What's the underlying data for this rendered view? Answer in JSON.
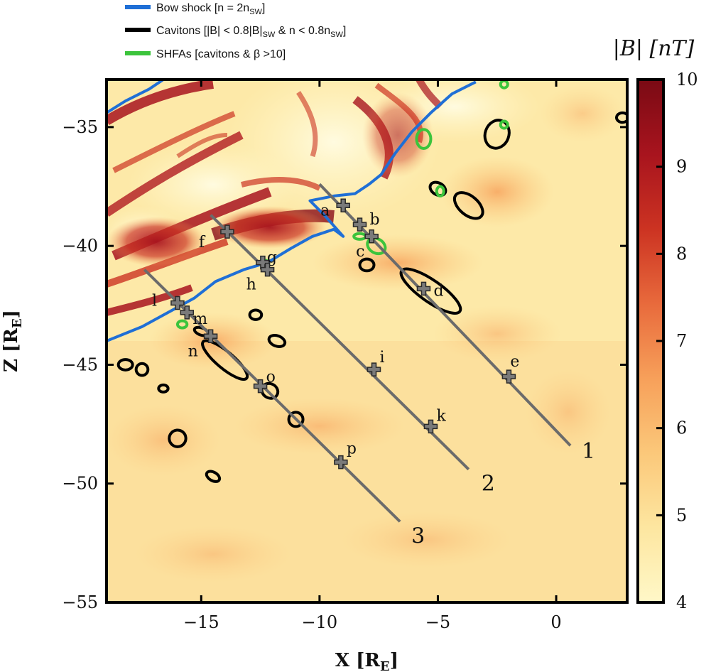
{
  "legend": {
    "items": [
      {
        "label": "Bow shock [n = 2n",
        "sub": "SW",
        "tail": "]",
        "color": "#1f6fd6"
      },
      {
        "label": "Cavitons [|B| < 0.8|B|",
        "sub": "SW",
        "tail": " & n < 0.8n",
        "sub2": "SW",
        "tail2": "]",
        "color": "#000000"
      },
      {
        "label": "SHFAs [cavitons & β >10]",
        "color": "#3cc43c"
      }
    ]
  },
  "colorbar": {
    "label": "|B| [nT]",
    "ticks": [
      "10",
      "9",
      "8",
      "7",
      "6",
      "5",
      "4"
    ],
    "range": [
      4,
      10
    ],
    "colormap": [
      "#fff8c8",
      "#fde6a0",
      "#fbc87a",
      "#f7a05a",
      "#e86a3c",
      "#cc3322",
      "#a8141e",
      "#7a0a14"
    ]
  },
  "axes": {
    "xlabel": "X [R",
    "xlabel_sub": "E",
    "xlabel_tail": "]",
    "ylabel": "Z [R",
    "ylabel_sub": "E",
    "ylabel_tail": "]",
    "xticks": [
      "−15",
      "−10",
      "−5",
      "0"
    ],
    "yticks": [
      "−35",
      "−40",
      "−45",
      "−50",
      "−55"
    ]
  },
  "chart_data": {
    "type": "scatter",
    "xlim": [
      -19,
      3
    ],
    "ylim": [
      -55,
      -33
    ],
    "xlabel": "X [RE]",
    "ylabel": "Z [RE]",
    "grid": false,
    "legend_position": "top-left, above plot",
    "lines": [
      {
        "name": "1",
        "start": [
          -10,
          -37.4
        ],
        "end": [
          0.6,
          -48.4
        ]
      },
      {
        "name": "2",
        "start": [
          -14.6,
          -38.7
        ],
        "end": [
          -3.7,
          -49.4
        ]
      },
      {
        "name": "3",
        "start": [
          -17.4,
          -41.0
        ],
        "end": [
          -6.6,
          -51.6
        ]
      }
    ],
    "points": [
      {
        "label": "a",
        "x": -9.0,
        "y": -38.3
      },
      {
        "label": "b",
        "x": -8.3,
        "y": -39.1
      },
      {
        "label": "c",
        "x": -7.8,
        "y": -39.6
      },
      {
        "label": "d",
        "x": -5.6,
        "y": -41.8
      },
      {
        "label": "e",
        "x": -2.0,
        "y": -45.5
      },
      {
        "label": "f",
        "x": -13.9,
        "y": -39.4
      },
      {
        "label": "g",
        "x": -12.4,
        "y": -40.7
      },
      {
        "label": "h",
        "x": -12.2,
        "y": -41.0
      },
      {
        "label": "i",
        "x": -7.7,
        "y": -45.2
      },
      {
        "label": "k",
        "x": -5.3,
        "y": -47.6
      },
      {
        "label": "l",
        "x": -16.0,
        "y": -42.4
      },
      {
        "label": "m",
        "x": -15.6,
        "y": -42.8
      },
      {
        "label": "n",
        "x": -14.6,
        "y": -43.8
      },
      {
        "label": "o",
        "x": -12.5,
        "y": -45.9
      },
      {
        "label": "p",
        "x": -9.1,
        "y": -49.1
      }
    ],
    "bow_shock": [
      [
        -19,
        -44
      ],
      [
        -17.5,
        -43.4
      ],
      [
        -16.4,
        -42.8
      ],
      [
        -15.3,
        -42.2
      ],
      [
        -14.4,
        -41.5
      ],
      [
        -13.2,
        -41.0
      ],
      [
        -12.2,
        -40.7
      ],
      [
        -11.2,
        -40.1
      ],
      [
        -10.3,
        -39.6
      ],
      [
        -9.4,
        -39.3
      ],
      [
        -9.0,
        -39.6
      ],
      [
        -9.8,
        -38.7
      ],
      [
        -10.4,
        -38.1
      ],
      [
        -9.4,
        -37.9
      ],
      [
        -8.5,
        -37.8
      ],
      [
        -7.9,
        -37.4
      ],
      [
        -7.4,
        -37.0
      ],
      [
        -6.8,
        -36.1
      ],
      [
        -6.1,
        -35.2
      ],
      [
        -5.3,
        -34.4
      ],
      [
        -4.4,
        -33.6
      ],
      [
        -3.4,
        -33.1
      ]
    ],
    "bow_shock_upper": [
      [
        -19,
        -34.4
      ],
      [
        -18.2,
        -33.9
      ],
      [
        -17.2,
        -33.4
      ],
      [
        -16.6,
        -33.0
      ]
    ],
    "cavitons": [
      {
        "cx": -5.3,
        "cy": -41.9,
        "rx": 1.5,
        "ry": 0.45,
        "rot": 35
      },
      {
        "cx": -14.0,
        "cy": -44.8,
        "rx": 1.2,
        "ry": 0.35,
        "rot": 40
      },
      {
        "cx": -3.7,
        "cy": -38.3,
        "rx": 0.7,
        "ry": 0.4,
        "rot": 40
      },
      {
        "cx": -2.5,
        "cy": -35.3,
        "rx": 0.5,
        "ry": 0.6,
        "rot": 20
      },
      {
        "cx": -12.7,
        "cy": -42.9,
        "rx": 0.25,
        "ry": 0.2,
        "rot": 0
      },
      {
        "cx": -11.8,
        "cy": -44.0,
        "rx": 0.35,
        "ry": 0.22,
        "rot": 20
      },
      {
        "cx": -8.0,
        "cy": -40.8,
        "rx": 0.3,
        "ry": 0.25,
        "rot": 0
      },
      {
        "cx": -12.1,
        "cy": -46.1,
        "rx": 0.35,
        "ry": 0.3,
        "rot": 30
      },
      {
        "cx": -11.0,
        "cy": -47.3,
        "rx": 0.3,
        "ry": 0.3,
        "rot": 0
      },
      {
        "cx": -16.0,
        "cy": -48.1,
        "rx": 0.35,
        "ry": 0.35,
        "rot": 40
      },
      {
        "cx": -14.5,
        "cy": -49.7,
        "rx": 0.3,
        "ry": 0.18,
        "rot": 30
      },
      {
        "cx": -18.2,
        "cy": -45.0,
        "rx": 0.3,
        "ry": 0.22,
        "rot": 0
      },
      {
        "cx": -17.5,
        "cy": -45.2,
        "rx": 0.25,
        "ry": 0.25,
        "rot": 0
      },
      {
        "cx": -16.6,
        "cy": -46.0,
        "rx": 0.2,
        "ry": 0.15,
        "rot": 0
      },
      {
        "cx": 2.8,
        "cy": -34.6,
        "rx": 0.25,
        "ry": 0.2,
        "rot": 0
      },
      {
        "cx": -5.0,
        "cy": -37.6,
        "rx": 0.35,
        "ry": 0.25,
        "rot": 30
      },
      {
        "cx": -15.0,
        "cy": -43.6,
        "rx": 0.3,
        "ry": 0.15,
        "rot": 20
      }
    ],
    "shfas": [
      {
        "cx": -5.6,
        "cy": -35.5,
        "rx": 0.3,
        "ry": 0.4,
        "rot": 0
      },
      {
        "cx": -7.6,
        "cy": -40.0,
        "rx": 0.4,
        "ry": 0.3,
        "rot": 30
      },
      {
        "cx": -8.3,
        "cy": -39.6,
        "rx": 0.25,
        "ry": 0.12,
        "rot": 0
      },
      {
        "cx": -4.9,
        "cy": -37.7,
        "rx": 0.15,
        "ry": 0.2,
        "rot": 0
      },
      {
        "cx": -2.2,
        "cy": -34.9,
        "rx": 0.15,
        "ry": 0.15,
        "rot": 0
      },
      {
        "cx": -2.2,
        "cy": -33.2,
        "rx": 0.15,
        "ry": 0.15,
        "rot": 0
      },
      {
        "cx": -15.8,
        "cy": -43.3,
        "rx": 0.2,
        "ry": 0.15,
        "rot": 0
      },
      {
        "cx": -12.3,
        "cy": -40.7,
        "rx": 0.12,
        "ry": 0.1,
        "rot": 0
      }
    ]
  }
}
